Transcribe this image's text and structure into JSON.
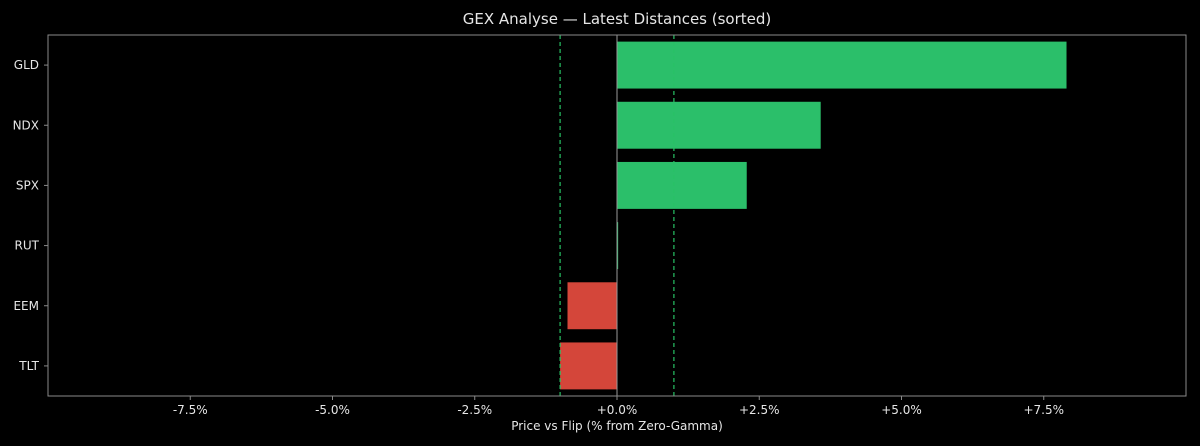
{
  "chart_data": {
    "type": "bar",
    "orientation": "horizontal",
    "title": "GEX Analyse — Latest Distances (sorted)",
    "xlabel": "Price vs Flip (% from Zero-Gamma)",
    "ylabel": "",
    "xlim": [
      -10,
      10
    ],
    "x_ticks": [
      -7.5,
      -5.0,
      -2.5,
      0.0,
      2.5,
      5.0,
      7.5
    ],
    "x_tick_labels": [
      "-7.5%",
      "-5.0%",
      "-2.5%",
      "+0.0%",
      "+2.5%",
      "+5.0%",
      "+7.5%"
    ],
    "categories": [
      "GLD",
      "NDX",
      "SPX",
      "RUT",
      "EEM",
      "TLT"
    ],
    "values": [
      7.9,
      3.58,
      2.28,
      0.02,
      -0.87,
      -1.0
    ],
    "reference_lines": [
      -1.0,
      1.0
    ],
    "zero_line": 0,
    "grid": false,
    "colors": {
      "positive": "#2bbf6a",
      "negative": "#d4463a",
      "reference_line": "#27c265",
      "zero_line": "#9a9a9a",
      "frame": "#8a8a8a",
      "text": "#e6e6e6",
      "background": "#000000"
    }
  }
}
